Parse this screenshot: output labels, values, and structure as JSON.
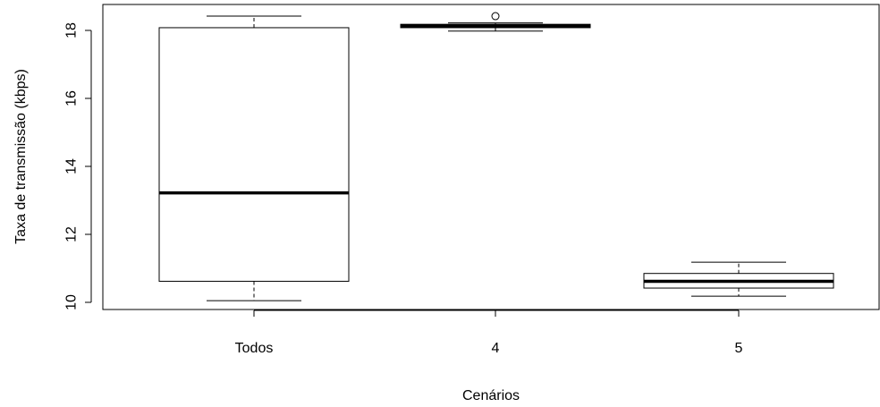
{
  "chart_data": {
    "type": "boxplot",
    "title": "",
    "xlabel": "Cenários",
    "ylabel": "Taxa de transmissão (kbps)",
    "ylim": [
      9.8,
      18.8
    ],
    "yticks": [
      10,
      12,
      14,
      16,
      18
    ],
    "grid": false,
    "categories": [
      "Todos",
      "4",
      "5"
    ],
    "boxes": [
      {
        "category": "Todos",
        "whisker_low": 10.05,
        "q1": 10.62,
        "median": 13.22,
        "q3": 18.08,
        "whisker_high": 18.42,
        "outliers": []
      },
      {
        "category": "4",
        "whisker_low": 17.98,
        "q1": 18.08,
        "median": 18.13,
        "q3": 18.18,
        "whisker_high": 18.22,
        "outliers": [
          18.42
        ]
      },
      {
        "category": "5",
        "whisker_low": 10.18,
        "q1": 10.42,
        "median": 10.62,
        "q3": 10.85,
        "whisker_high": 11.18,
        "outliers": []
      }
    ]
  }
}
